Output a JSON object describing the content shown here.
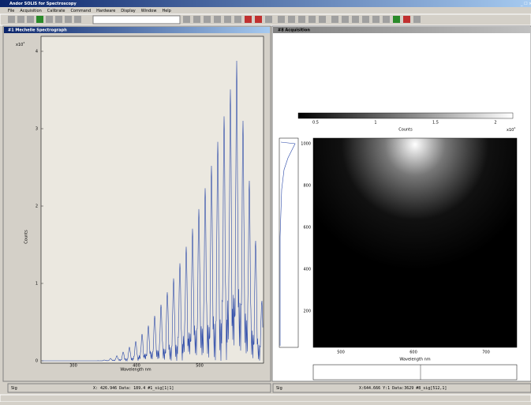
{
  "app": {
    "title": "Andor SOLIS for Spectroscopy",
    "menu": [
      "File",
      "Acquisition",
      "Calibrate",
      "Command",
      "Hardware",
      "Display",
      "Window",
      "Help"
    ]
  },
  "left_window": {
    "title": "#1  Mechelle Spectrograph",
    "y_label": "Counts",
    "x_label": "Wavelength nm",
    "y_scale": "x10",
    "y_exp": "4",
    "yticks": [
      "0",
      "1",
      "2",
      "3",
      "4"
    ],
    "xticks": [
      "300",
      "400",
      "500"
    ],
    "status": {
      "mode": "Sig",
      "readout": "X: 426.946  Data: 189.4    #1_sig[1|1]"
    }
  },
  "right_window": {
    "title": "#8  Acquisition",
    "colorbar_label": "Counts",
    "colorbar_scale": "x10",
    "colorbar_exp": "4",
    "colorbar_ticks": [
      "0.5",
      "1",
      "1.5",
      "2"
    ],
    "yticks": [
      "1000",
      "800",
      "600",
      "400",
      "200"
    ],
    "xticks": [
      "500",
      "600",
      "700"
    ],
    "x_label": "Wavelength nm",
    "status": {
      "mode": "Sig",
      "readout": "X:644.666  Y:1  Data:3629    #8_sig[512,1]"
    }
  }
}
